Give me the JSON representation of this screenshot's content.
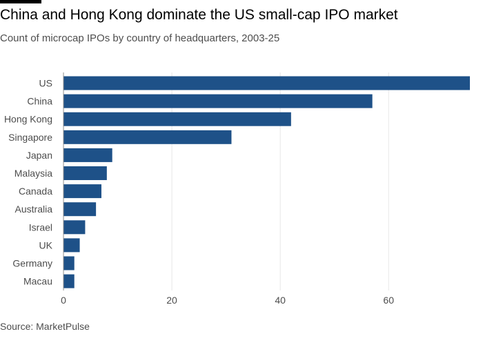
{
  "header": {
    "title": "China and Hong Kong dominate the US small-cap IPO market",
    "subtitle": "Count of microcap IPOs by country of headquarters, 2003-25"
  },
  "footer": {
    "source": "Source: MarketPulse"
  },
  "colors": {
    "bar": "#1e5188",
    "grid": "#e6e6e6",
    "text": "#4d4d4d"
  },
  "chart_data": {
    "type": "bar",
    "orientation": "horizontal",
    "title": "China and Hong Kong dominate the US small-cap IPO market",
    "subtitle": "Count of microcap IPOs by country of headquarters, 2003-25",
    "xlabel": "",
    "ylabel": "",
    "categories": [
      "US",
      "China",
      "Hong Kong",
      "Singapore",
      "Japan",
      "Malaysia",
      "Canada",
      "Australia",
      "Israel",
      "UK",
      "Germany",
      "Macau"
    ],
    "values": [
      75,
      57,
      42,
      31,
      9,
      8,
      7,
      6,
      4,
      3,
      2,
      2
    ],
    "xlim": [
      0,
      75
    ],
    "xticks": [
      0,
      20,
      40,
      60
    ],
    "grid": true
  }
}
